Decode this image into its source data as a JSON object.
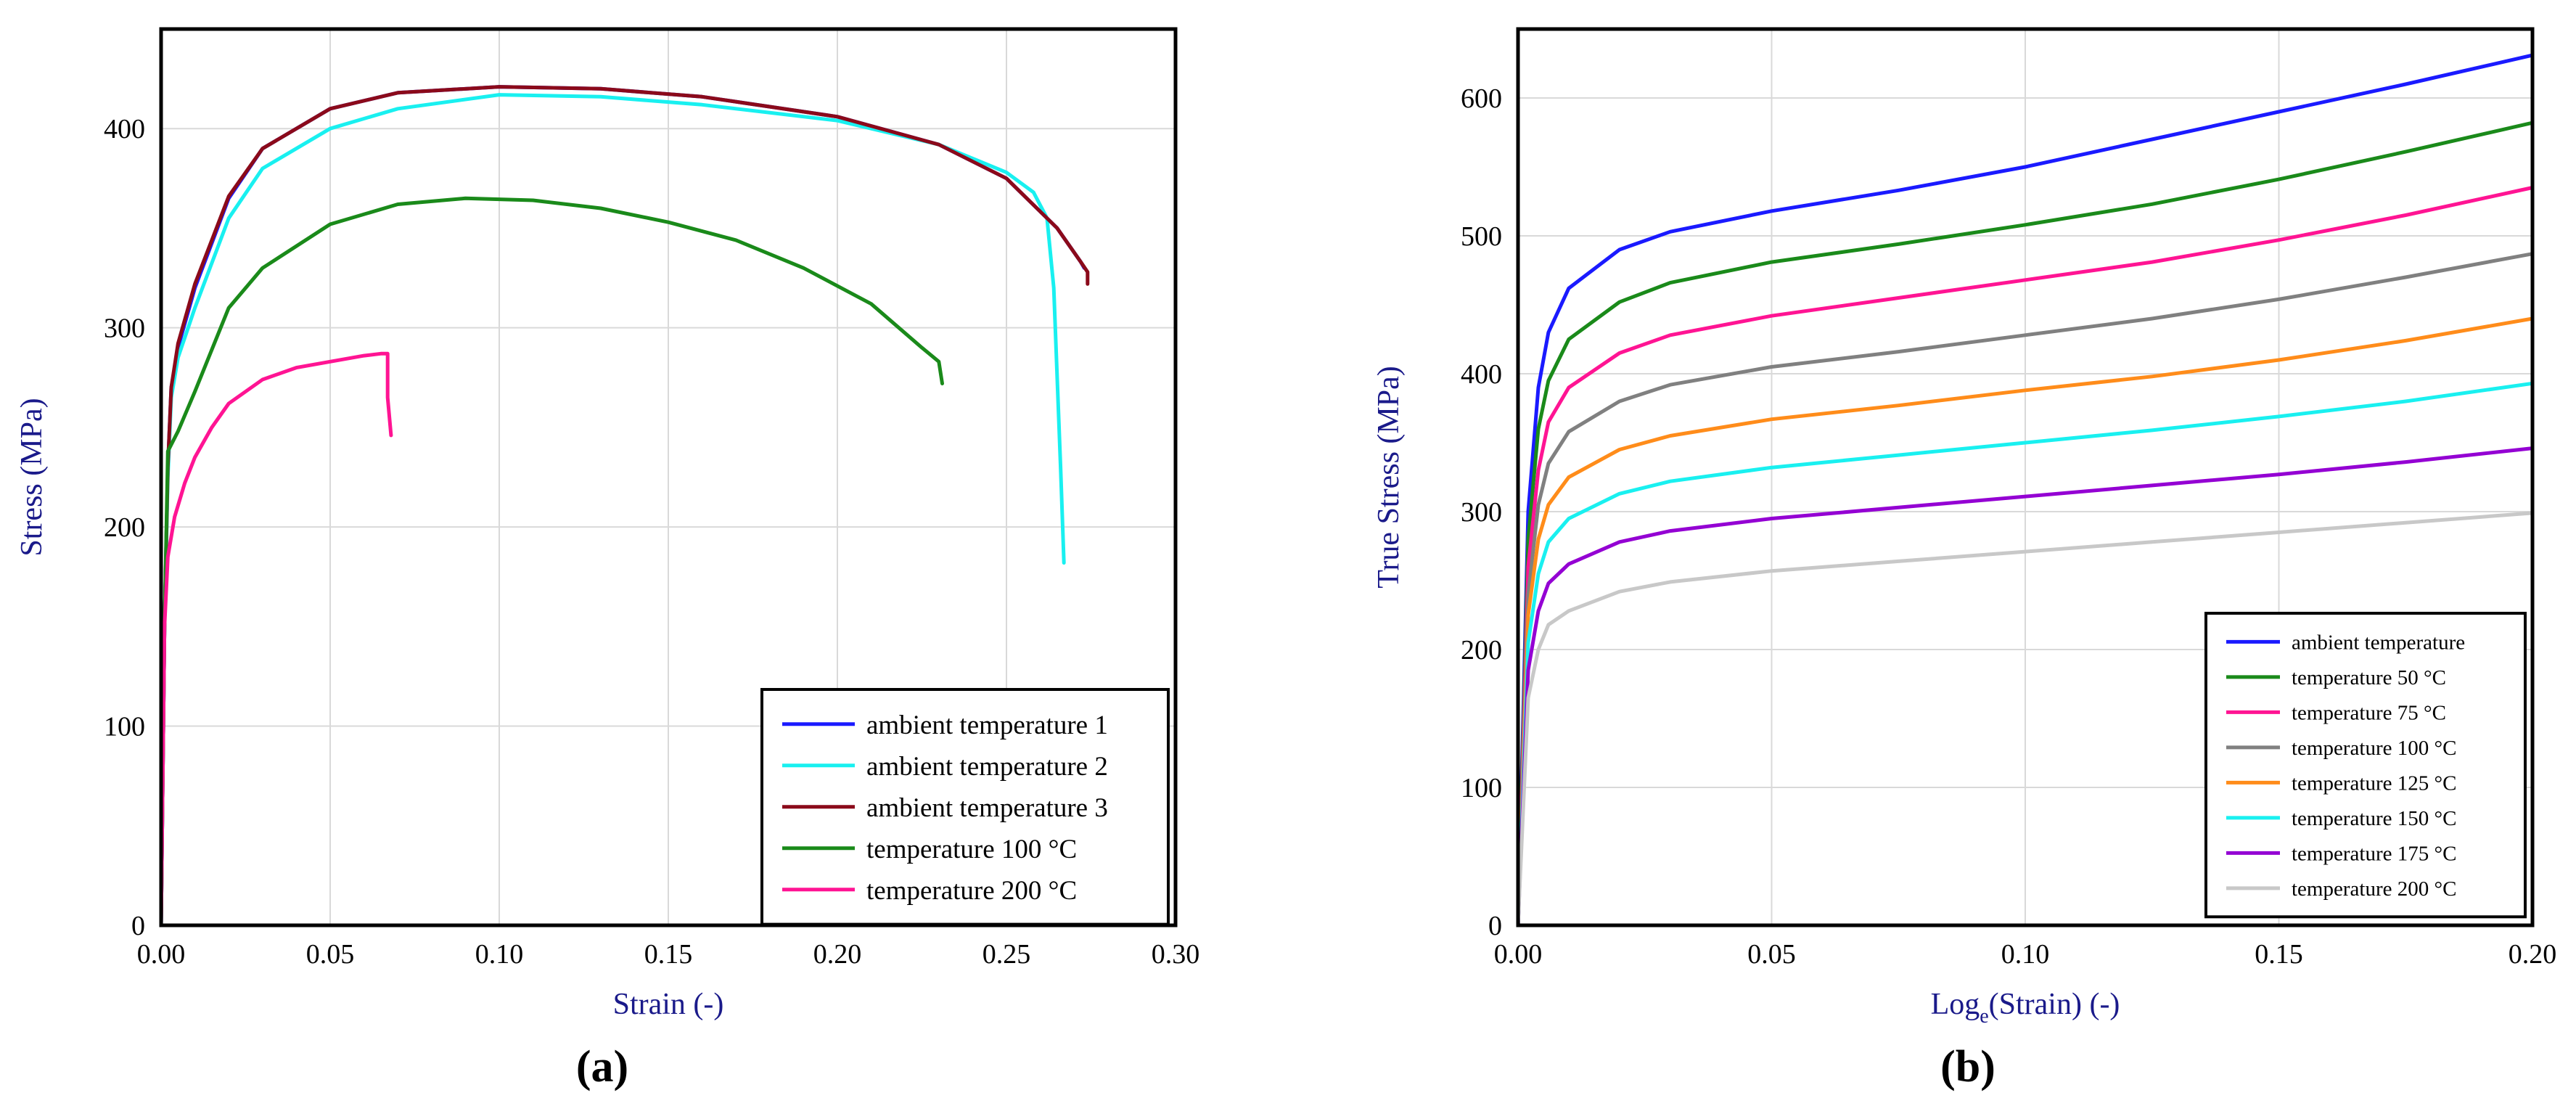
{
  "chart_data": [
    {
      "type": "line",
      "panel_label": "(a)",
      "xlabel": "Strain (-)",
      "ylabel": "Stress (MPa)",
      "xlim": [
        0,
        0.3
      ],
      "ylim": [
        0,
        450
      ],
      "x_ticks": [
        "0.00",
        "0.05",
        "0.10",
        "0.15",
        "0.20",
        "0.25",
        "0.30"
      ],
      "y_ticks": [
        "0",
        "100",
        "200",
        "300",
        "400"
      ],
      "x_tick_values": [
        0,
        0.05,
        0.1,
        0.15,
        0.2,
        0.25,
        0.3
      ],
      "y_tick_values": [
        0,
        100,
        200,
        300,
        400
      ],
      "grid": true,
      "legend_position": "bottom-right",
      "series": [
        {
          "name": "ambient temperature 1",
          "color": "#1a1aff",
          "x": [
            0,
            0.001,
            0.002,
            0.003,
            0.005,
            0.01,
            0.02,
            0.03,
            0.05,
            0.07,
            0.1,
            0.13,
            0.16,
            0.2,
            0.23,
            0.25,
            0.265,
            0.272,
            0.273
          ],
          "y": [
            0,
            150,
            230,
            270,
            290,
            320,
            365,
            390,
            410,
            418,
            421,
            420,
            416,
            406,
            392,
            375,
            350,
            333,
            330
          ]
        },
        {
          "name": "ambient temperature 2",
          "color": "#19f0f0",
          "x": [
            0,
            0.001,
            0.002,
            0.003,
            0.005,
            0.01,
            0.02,
            0.03,
            0.05,
            0.07,
            0.1,
            0.13,
            0.16,
            0.2,
            0.23,
            0.25,
            0.258,
            0.262,
            0.264,
            0.266,
            0.267
          ],
          "y": [
            0,
            150,
            225,
            265,
            285,
            310,
            355,
            380,
            400,
            410,
            417,
            416,
            412,
            404,
            392,
            378,
            368,
            355,
            320,
            230,
            182
          ]
        },
        {
          "name": "ambient temperature 3",
          "color": "#8b0a1a",
          "x": [
            0,
            0.001,
            0.002,
            0.003,
            0.005,
            0.01,
            0.02,
            0.03,
            0.05,
            0.07,
            0.1,
            0.13,
            0.16,
            0.2,
            0.23,
            0.25,
            0.265,
            0.272,
            0.274,
            0.274
          ],
          "y": [
            0,
            150,
            230,
            270,
            292,
            322,
            366,
            390,
            410,
            418,
            421,
            420,
            416,
            406,
            392,
            375,
            350,
            333,
            328,
            322
          ]
        },
        {
          "name": "temperature 100 °C",
          "color": "#1a8a1a",
          "x": [
            0,
            0.001,
            0.002,
            0.005,
            0.01,
            0.02,
            0.03,
            0.05,
            0.07,
            0.09,
            0.11,
            0.13,
            0.15,
            0.17,
            0.19,
            0.21,
            0.225,
            0.23,
            0.231
          ],
          "y": [
            0,
            150,
            238,
            248,
            268,
            310,
            330,
            352,
            362,
            365,
            364,
            360,
            353,
            344,
            330,
            312,
            290,
            283,
            272
          ]
        },
        {
          "name": "temperature 200 °C",
          "color": "#ff1493",
          "x": [
            0,
            0.001,
            0.002,
            0.004,
            0.007,
            0.01,
            0.015,
            0.02,
            0.03,
            0.04,
            0.05,
            0.06,
            0.065,
            0.067,
            0.067,
            0.068
          ],
          "y": [
            0,
            150,
            185,
            205,
            222,
            235,
            250,
            262,
            274,
            280,
            283,
            286,
            287,
            287,
            265,
            246
          ]
        }
      ]
    },
    {
      "type": "line",
      "panel_label": "(b)",
      "xlabel_main": "Log",
      "xlabel_sub": "e",
      "xlabel_rest": "(Strain) (-)",
      "ylabel": "True Stress (MPa)",
      "xlim": [
        0,
        0.2
      ],
      "ylim": [
        0,
        650
      ],
      "x_ticks": [
        "0.00",
        "0.05",
        "0.10",
        "0.15",
        "0.20"
      ],
      "y_ticks": [
        "0",
        "100",
        "200",
        "300",
        "400",
        "500",
        "600"
      ],
      "x_tick_values": [
        0,
        0.05,
        0.1,
        0.15,
        0.2
      ],
      "y_tick_values": [
        0,
        100,
        200,
        300,
        400,
        500,
        600
      ],
      "grid": true,
      "legend_position": "bottom-right",
      "series": [
        {
          "name": "ambient temperature",
          "color": "#1a1aff",
          "x": [
            0,
            0.002,
            0.004,
            0.006,
            0.01,
            0.02,
            0.03,
            0.05,
            0.075,
            0.1,
            0.125,
            0.15,
            0.175,
            0.2
          ],
          "y": [
            0,
            300,
            390,
            430,
            462,
            490,
            503,
            518,
            533,
            550,
            570,
            590,
            610,
            631
          ]
        },
        {
          "name": "temperature 50 °C",
          "color": "#1a8a1a",
          "x": [
            0,
            0.002,
            0.004,
            0.006,
            0.01,
            0.02,
            0.03,
            0.05,
            0.075,
            0.1,
            0.125,
            0.15,
            0.175,
            0.2
          ],
          "y": [
            0,
            280,
            360,
            395,
            425,
            452,
            466,
            481,
            494,
            508,
            523,
            541,
            561,
            582
          ]
        },
        {
          "name": "temperature 75 °C",
          "color": "#ff1493",
          "x": [
            0,
            0.002,
            0.004,
            0.006,
            0.01,
            0.02,
            0.03,
            0.05,
            0.075,
            0.1,
            0.125,
            0.15,
            0.175,
            0.2
          ],
          "y": [
            0,
            260,
            330,
            365,
            390,
            415,
            428,
            442,
            455,
            468,
            481,
            497,
            515,
            535
          ]
        },
        {
          "name": "temperature 100 °C",
          "color": "#808080",
          "x": [
            0,
            0.002,
            0.004,
            0.006,
            0.01,
            0.02,
            0.03,
            0.05,
            0.075,
            0.1,
            0.125,
            0.15,
            0.175,
            0.2
          ],
          "y": [
            0,
            240,
            305,
            335,
            358,
            380,
            392,
            405,
            416,
            428,
            440,
            454,
            470,
            487
          ]
        },
        {
          "name": "temperature 125 °C",
          "color": "#ff8c1a",
          "x": [
            0,
            0.002,
            0.004,
            0.006,
            0.01,
            0.02,
            0.03,
            0.05,
            0.075,
            0.1,
            0.125,
            0.15,
            0.175,
            0.2
          ],
          "y": [
            0,
            225,
            280,
            305,
            325,
            345,
            355,
            367,
            377,
            388,
            398,
            410,
            424,
            440
          ]
        },
        {
          "name": "temperature 150 °C",
          "color": "#19f0f0",
          "x": [
            0,
            0.002,
            0.004,
            0.006,
            0.01,
            0.02,
            0.03,
            0.05,
            0.075,
            0.1,
            0.125,
            0.15,
            0.175,
            0.2
          ],
          "y": [
            0,
            205,
            255,
            278,
            295,
            313,
            322,
            332,
            341,
            350,
            359,
            369,
            380,
            393
          ]
        },
        {
          "name": "temperature 175 °C",
          "color": "#9400d3",
          "x": [
            0,
            0.002,
            0.004,
            0.006,
            0.01,
            0.02,
            0.03,
            0.05,
            0.075,
            0.1,
            0.125,
            0.15,
            0.175,
            0.2
          ],
          "y": [
            0,
            185,
            228,
            248,
            262,
            278,
            286,
            295,
            303,
            311,
            319,
            327,
            336,
            346
          ]
        },
        {
          "name": "temperature 200 °C",
          "color": "#c8c8c8",
          "x": [
            0,
            0.002,
            0.004,
            0.006,
            0.01,
            0.02,
            0.03,
            0.05,
            0.075,
            0.1,
            0.125,
            0.15,
            0.175,
            0.2
          ],
          "y": [
            0,
            165,
            200,
            218,
            228,
            242,
            249,
            257,
            264,
            271,
            278,
            285,
            292,
            299
          ]
        }
      ]
    }
  ]
}
